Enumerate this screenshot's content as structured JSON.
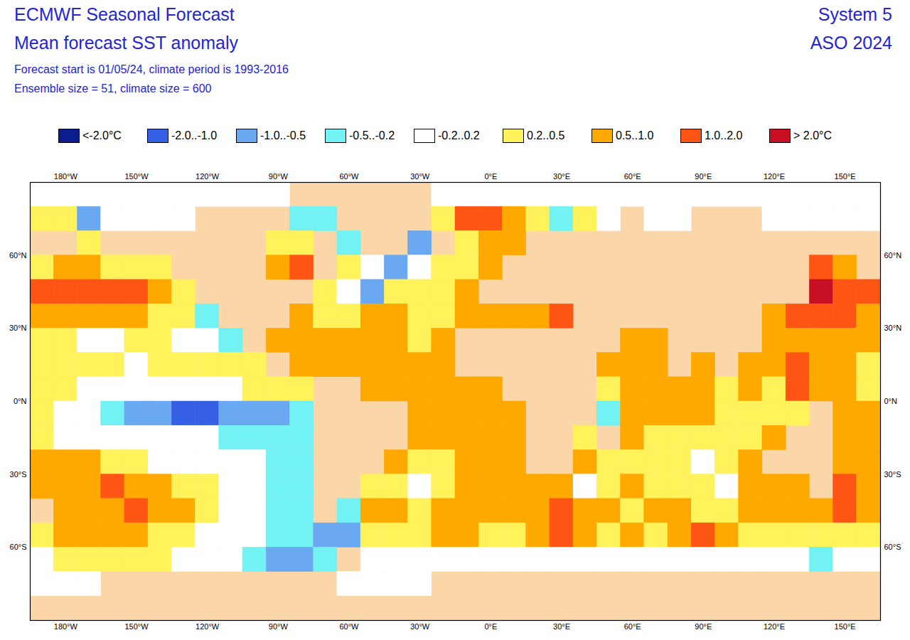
{
  "chart_data": {
    "type": "heatmap",
    "title": "ECMWF Seasonal Forecast",
    "subtitle": "Mean forecast SST anomaly",
    "annotations": [
      "Forecast start is 01/05/24, climate period is 1993-2016",
      "Ensemble size = 51, climate size = 600"
    ],
    "corner_labels": [
      "System 5",
      "ASO 2024"
    ],
    "xlim": [
      -195,
      165
    ],
    "ylim": [
      -90,
      90
    ],
    "xticks": [
      {
        "value": -180,
        "label": "180°W"
      },
      {
        "value": -150,
        "label": "150°W"
      },
      {
        "value": -120,
        "label": "120°W"
      },
      {
        "value": -90,
        "label": "90°W"
      },
      {
        "value": -60,
        "label": "60°W"
      },
      {
        "value": -30,
        "label": "30°W"
      },
      {
        "value": 0,
        "label": "0°E"
      },
      {
        "value": 30,
        "label": "30°E"
      },
      {
        "value": 60,
        "label": "60°E"
      },
      {
        "value": 90,
        "label": "90°E"
      },
      {
        "value": 120,
        "label": "120°E"
      },
      {
        "value": 150,
        "label": "150°E"
      }
    ],
    "yticks": [
      {
        "value": 60,
        "label": "60°N"
      },
      {
        "value": 30,
        "label": "30°N"
      },
      {
        "value": 0,
        "label": "0°N"
      },
      {
        "value": -30,
        "label": "30°S"
      },
      {
        "value": -60,
        "label": "60°S"
      }
    ],
    "colorbar": {
      "bins": [
        -2,
        -1,
        -0.5,
        -0.2,
        0.2,
        0.5,
        1,
        2
      ],
      "labels": [
        "<-2.0°C",
        "-2.0..-1.0",
        "-1.0..-0.5",
        "-0.5..-0.2",
        "-0.2..0.2",
        "0.2..0.5",
        "0.5..1.0",
        "1.0..2.0",
        "> 2.0°C"
      ],
      "colors": [
        "#0b1d8c",
        "#3560e6",
        "#6aa8f2",
        "#72f2f2",
        "#ffffff",
        "#fff25a",
        "#ffa800",
        "#ff5514",
        "#c80f23"
      ]
    },
    "grid": {
      "lon": [
        -190,
        -180,
        -170,
        -160,
        -150,
        -140,
        -130,
        -120,
        -110,
        -100,
        -90,
        -80,
        -70,
        -60,
        -50,
        -40,
        -30,
        -20,
        -10,
        0,
        10,
        20,
        30,
        40,
        50,
        60,
        70,
        80,
        90,
        100,
        110,
        120,
        130,
        140,
        150,
        160
      ],
      "lat": [
        85,
        75,
        65,
        55,
        45,
        35,
        25,
        15,
        5,
        -5,
        -15,
        -25,
        -35,
        -45,
        -55,
        -65,
        -75,
        -85
      ],
      "values": [
        [
          0,
          0,
          0,
          0,
          0,
          0,
          0,
          0,
          0,
          0,
          0,
          null,
          null,
          null,
          null,
          null,
          null,
          0,
          0,
          0,
          0,
          0,
          0,
          0,
          0,
          0,
          0,
          0,
          0,
          0,
          0,
          0,
          0,
          0,
          0,
          0
        ],
        [
          0.3,
          0.3,
          -0.7,
          0,
          0,
          0,
          0,
          null,
          null,
          null,
          null,
          -0.3,
          -0.3,
          null,
          null,
          null,
          null,
          0.3,
          1.5,
          1.5,
          0.7,
          0.3,
          -0.3,
          0.3,
          0,
          null,
          0,
          0,
          null,
          null,
          null,
          0,
          0,
          0,
          0,
          0
        ],
        [
          null,
          null,
          0.3,
          null,
          null,
          null,
          null,
          null,
          null,
          null,
          0.3,
          0.3,
          null,
          -0.3,
          null,
          null,
          -0.7,
          null,
          0.3,
          0.7,
          0.7,
          null,
          null,
          null,
          null,
          null,
          null,
          null,
          null,
          null,
          null,
          null,
          null,
          null,
          null,
          null
        ],
        [
          0.3,
          0.7,
          0.7,
          0.3,
          0.3,
          0.3,
          null,
          null,
          null,
          null,
          0.7,
          1.5,
          null,
          0.3,
          0,
          -0.7,
          0,
          0.3,
          0.3,
          0.7,
          null,
          null,
          null,
          null,
          null,
          null,
          null,
          null,
          null,
          null,
          null,
          null,
          null,
          1.5,
          0.7,
          null
        ],
        [
          1.5,
          1.5,
          1.5,
          1.5,
          1.5,
          0.7,
          0.3,
          null,
          null,
          null,
          null,
          null,
          0.3,
          0,
          -0.7,
          0.3,
          0.3,
          0.3,
          0.7,
          null,
          null,
          null,
          null,
          null,
          null,
          null,
          null,
          null,
          null,
          null,
          null,
          null,
          null,
          2.5,
          1.5,
          1.5
        ],
        [
          0.7,
          0.7,
          0.7,
          0.7,
          0.7,
          0.3,
          0.3,
          -0.3,
          null,
          null,
          null,
          0.7,
          0.3,
          0.3,
          0.7,
          0.7,
          0.3,
          0.3,
          0.7,
          0.7,
          0.7,
          0.7,
          1.5,
          null,
          null,
          null,
          null,
          null,
          null,
          null,
          null,
          0.7,
          1.5,
          1.5,
          1.5,
          0.7
        ],
        [
          0.3,
          0.3,
          0,
          0,
          0.3,
          0.3,
          0,
          0,
          -0.3,
          null,
          0.7,
          0.7,
          0.7,
          0.7,
          0.7,
          0.7,
          0.3,
          0.7,
          null,
          null,
          null,
          null,
          null,
          null,
          null,
          0.7,
          0.7,
          null,
          null,
          null,
          null,
          0.7,
          0.7,
          0.7,
          0.7,
          0.7
        ],
        [
          0.3,
          0.3,
          0.3,
          0.3,
          0,
          0.3,
          0.3,
          0.3,
          0.3,
          0.3,
          null,
          0.7,
          0.7,
          0.7,
          0.7,
          0.7,
          0.7,
          0.7,
          null,
          null,
          null,
          null,
          null,
          null,
          0.7,
          0.7,
          0.7,
          null,
          0.7,
          null,
          0.7,
          0.7,
          1.5,
          0.7,
          0.7,
          0.3
        ],
        [
          0.3,
          0.3,
          0,
          0,
          0,
          0,
          0,
          0,
          0,
          0.3,
          0.3,
          0.3,
          null,
          null,
          0.7,
          0.7,
          0.7,
          0.7,
          0.7,
          0.7,
          null,
          null,
          null,
          null,
          0.3,
          0.7,
          0.7,
          0.7,
          0.7,
          0.3,
          0.7,
          0.3,
          1.5,
          0.7,
          0.7,
          0.3
        ],
        [
          0.3,
          0,
          0,
          -0.3,
          -0.7,
          -0.7,
          -1.5,
          -1.5,
          -0.7,
          -0.7,
          -0.7,
          -0.3,
          null,
          null,
          null,
          null,
          0.7,
          0.7,
          0.7,
          0.7,
          0.7,
          null,
          null,
          null,
          -0.3,
          0.7,
          0.7,
          0.7,
          0.7,
          0.3,
          0.3,
          0.3,
          0.3,
          null,
          0.7,
          0.7
        ],
        [
          0.3,
          0,
          0,
          0,
          0,
          0,
          0,
          0,
          -0.3,
          -0.3,
          -0.3,
          -0.3,
          null,
          null,
          null,
          null,
          0.7,
          0.7,
          0.7,
          0.7,
          0.7,
          null,
          null,
          0.3,
          null,
          0.7,
          0.3,
          0.3,
          0.3,
          0.3,
          0.3,
          0.7,
          null,
          null,
          0.7,
          0.7
        ],
        [
          0.7,
          0.7,
          0.7,
          0.3,
          0.3,
          0,
          0,
          0,
          0,
          0,
          -0.3,
          -0.3,
          null,
          null,
          null,
          0.7,
          0.3,
          0.3,
          0.7,
          0.7,
          0.7,
          null,
          null,
          0.7,
          0.3,
          0.3,
          0.3,
          0.3,
          0,
          0.3,
          0.7,
          null,
          null,
          null,
          0.7,
          0.7
        ],
        [
          0.7,
          0.7,
          0.7,
          1.5,
          0.7,
          0.7,
          0.3,
          0.3,
          0,
          0,
          -0.3,
          -0.3,
          null,
          null,
          0.3,
          0.3,
          0,
          0.3,
          0.7,
          0.7,
          0.7,
          0.7,
          0.7,
          0,
          0.3,
          0.7,
          0.3,
          0.3,
          0.3,
          0,
          0.7,
          0.7,
          0.7,
          null,
          1.5,
          0.7
        ],
        [
          null,
          0.7,
          0.7,
          0.7,
          1.5,
          0.7,
          0.7,
          0.3,
          0,
          0,
          -0.3,
          -0.3,
          null,
          -0.3,
          0.7,
          0.7,
          0.3,
          0.7,
          0.7,
          0.7,
          0.7,
          0.7,
          1.5,
          0.7,
          0.7,
          0.3,
          0.7,
          0.7,
          0.3,
          0.3,
          0.7,
          0.7,
          0.7,
          0.7,
          1.5,
          0.7
        ],
        [
          0.3,
          0.7,
          0.7,
          0.7,
          0.7,
          0.3,
          0.3,
          0,
          0,
          0,
          -0.3,
          -0.3,
          -0.7,
          -0.7,
          0.3,
          0.3,
          0.3,
          0.7,
          0.7,
          0.3,
          0.3,
          0.7,
          1.5,
          0.7,
          0.3,
          0.7,
          0.3,
          0.7,
          1.5,
          0.7,
          0.3,
          0.3,
          0.3,
          0.3,
          0.3,
          0.3
        ],
        [
          0,
          0.3,
          0.3,
          0.3,
          0.3,
          0.3,
          0,
          0,
          0,
          -0.3,
          -0.7,
          -0.7,
          -0.3,
          null,
          0,
          0,
          0,
          0,
          0,
          0,
          0,
          0,
          0,
          0,
          0,
          0,
          0,
          0,
          0,
          0,
          0,
          0,
          0,
          -0.3,
          0,
          0
        ],
        [
          0,
          0,
          0,
          null,
          null,
          null,
          null,
          null,
          null,
          null,
          null,
          null,
          null,
          0,
          0,
          0,
          0,
          null,
          null,
          null,
          null,
          null,
          null,
          null,
          null,
          null,
          null,
          null,
          null,
          null,
          null,
          null,
          null,
          null,
          null,
          null
        ],
        [
          null,
          null,
          null,
          null,
          null,
          null,
          null,
          null,
          null,
          null,
          null,
          null,
          null,
          null,
          null,
          null,
          null,
          null,
          null,
          null,
          null,
          null,
          null,
          null,
          null,
          null,
          null,
          null,
          null,
          null,
          null,
          null,
          null,
          null,
          null,
          null
        ]
      ]
    }
  }
}
